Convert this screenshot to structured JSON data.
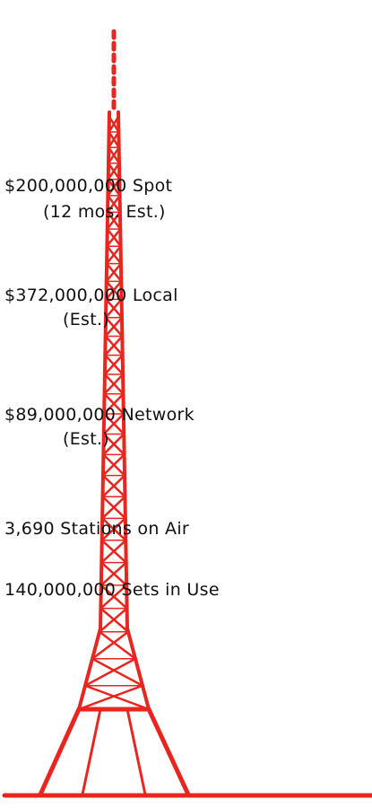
{
  "items": [
    {
      "text": "$200,000,000 Spot",
      "note": "(12 mos. Est.)"
    },
    {
      "text": "$372,000,000 Local",
      "note": "(Est.)"
    },
    {
      "text": "$89,000,000 Network",
      "note": "(Est.)"
    },
    {
      "text": "3,690 Stations on Air"
    },
    {
      "text": "140,000,000 Sets in Use"
    }
  ]
}
